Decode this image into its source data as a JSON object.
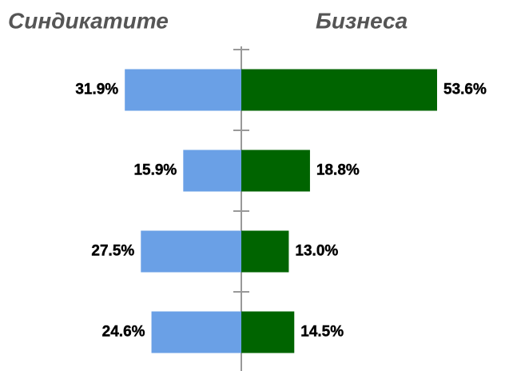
{
  "chart_data": {
    "type": "butterfly",
    "categories": [
      null,
      null,
      null,
      null
    ],
    "series": [
      {
        "name": "Синдикатите",
        "color": "#6aa0e6",
        "values": [
          31.9,
          15.9,
          27.5,
          24.6
        ],
        "value_labels": [
          "31.9%",
          "15.9%",
          "27.5%",
          "24.6%"
        ]
      },
      {
        "name": "Бизнеса",
        "color": "#006400",
        "values": [
          53.6,
          18.8,
          13.0,
          14.5
        ],
        "value_labels": [
          "53.6%",
          "18.8%",
          "13.0%",
          "14.5%"
        ]
      }
    ]
  }
}
